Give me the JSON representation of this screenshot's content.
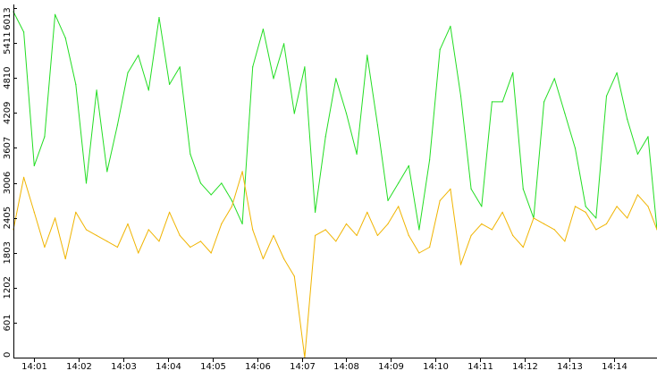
{
  "chart_data": {
    "type": "line",
    "title": "",
    "xlabel": "",
    "ylabel": "",
    "grid": false,
    "legend": "none",
    "ylim": [
      0,
      6013
    ],
    "xlim": [
      "14:00:32",
      "14:14:58"
    ],
    "y_ticks": [
      0,
      601,
      1202,
      1803,
      2405,
      3006,
      3607,
      4209,
      4810,
      5411,
      6013
    ],
    "x_ticks": [
      "14:01",
      "14:02",
      "14:03",
      "14:04",
      "14:05",
      "14:06",
      "14:07",
      "14:08",
      "14:09",
      "14:10",
      "14:11",
      "14:12",
      "14:13",
      "14:14"
    ],
    "x": [
      "14:00:32",
      "14:00:46",
      "14:01:00",
      "14:01:14",
      "14:01:28",
      "14:01:42",
      "14:01:56",
      "14:02:10",
      "14:02:24",
      "14:02:38",
      "14:02:52",
      "14:03:06",
      "14:03:20",
      "14:03:34",
      "14:03:48",
      "14:04:02",
      "14:04:16",
      "14:04:30",
      "14:04:44",
      "14:04:58",
      "14:05:12",
      "14:05:26",
      "14:05:40",
      "14:05:54",
      "14:06:08",
      "14:06:22",
      "14:06:36",
      "14:06:50",
      "14:07:04",
      "14:07:18",
      "14:07:32",
      "14:07:46",
      "14:08:00",
      "14:08:14",
      "14:08:28",
      "14:08:42",
      "14:08:56",
      "14:09:10",
      "14:09:24",
      "14:09:38",
      "14:09:52",
      "14:10:06",
      "14:10:20",
      "14:10:34",
      "14:10:48",
      "14:11:02",
      "14:11:16",
      "14:11:30",
      "14:11:44",
      "14:11:58",
      "14:12:12",
      "14:12:26",
      "14:12:40",
      "14:12:54",
      "14:13:08",
      "14:13:22",
      "14:13:36",
      "14:13:50",
      "14:14:04",
      "14:14:18",
      "14:14:32",
      "14:14:46",
      "14:14:58"
    ],
    "series": [
      {
        "color": "#22dd22",
        "values": [
          5950,
          5600,
          3300,
          3800,
          5900,
          5500,
          4700,
          3000,
          4600,
          3200,
          4000,
          4900,
          5200,
          4600,
          5850,
          4700,
          5000,
          3500,
          3000,
          2800,
          3000,
          2700,
          2300,
          5000,
          5650,
          4800,
          5400,
          4200,
          5000,
          2500,
          3800,
          4800,
          4200,
          3500,
          5200,
          4000,
          2700,
          3000,
          3300,
          2200,
          3400,
          5300,
          5700,
          4500,
          2900,
          2600,
          4400,
          4400,
          4900,
          2900,
          2400,
          4400,
          4800,
          4200,
          3600,
          2600,
          2400,
          4500,
          4900,
          4100,
          3500,
          3800,
          2200
        ]
      },
      {
        "color": "#f0b400",
        "values": [
          2200,
          3100,
          2500,
          1900,
          2400,
          1700,
          2500,
          2200,
          2100,
          2000,
          1900,
          2300,
          1800,
          2200,
          2000,
          2500,
          2100,
          1900,
          2000,
          1800,
          2300,
          2600,
          3200,
          2200,
          1700,
          2100,
          1700,
          1400,
          0,
          2100,
          2200,
          2000,
          2300,
          2100,
          2500,
          2100,
          2300,
          2600,
          2100,
          1800,
          1900,
          2700,
          2900,
          1600,
          2100,
          2300,
          2200,
          2500,
          2100,
          1900,
          2400,
          2300,
          2200,
          2000,
          2600,
          2500,
          2200,
          2300,
          2600,
          2400,
          2800,
          2600,
          2200
        ]
      }
    ]
  }
}
